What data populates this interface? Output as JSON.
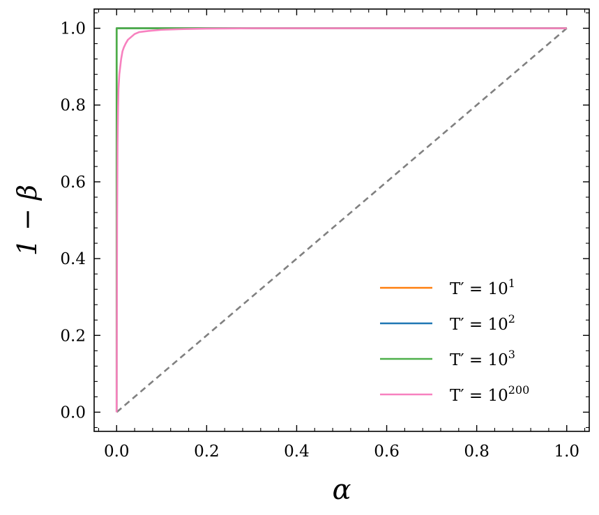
{
  "chart_data": {
    "type": "line",
    "xlabel": "α",
    "ylabel": "1 − β",
    "xlim": [
      -0.05,
      1.05
    ],
    "ylim": [
      -0.05,
      1.05
    ],
    "x_ticks": [
      "0.0",
      "0.2",
      "0.4",
      "0.6",
      "0.8",
      "1.0"
    ],
    "y_ticks": [
      "0.0",
      "0.2",
      "0.4",
      "0.6",
      "0.8",
      "1.0"
    ],
    "grid": false,
    "legend_position": "bottom-right",
    "reference_line": {
      "x": [
        0,
        1
      ],
      "y": [
        0,
        1
      ],
      "color": "#808080",
      "style": "dashed"
    },
    "series": [
      {
        "name": "T′ = 10",
        "exp": "1",
        "color": "#ff7f0e",
        "x": [
          0,
          0,
          0.002,
          0.004,
          1.0
        ],
        "y": [
          0,
          1.0,
          1.0,
          1.0,
          1.0
        ]
      },
      {
        "name": "T′ = 10",
        "exp": "2",
        "color": "#1f77b4",
        "x": [
          0,
          0,
          0.002,
          0.004,
          1.0
        ],
        "y": [
          0,
          1.0,
          1.0,
          1.0,
          1.0
        ]
      },
      {
        "name": "T′ = 10",
        "exp": "3",
        "color": "#4daf4a",
        "x": [
          0,
          0,
          0.002,
          0.004,
          0.05,
          0.2,
          1.0
        ],
        "y": [
          0,
          1.0,
          1.0,
          1.0,
          1.0,
          1.0,
          1.0
        ]
      },
      {
        "name": "T′ = 10",
        "exp": "200",
        "color": "#f781bf",
        "x": [
          0,
          0.001,
          0.002,
          0.003,
          0.004,
          0.006,
          0.008,
          0.01,
          0.013,
          0.016,
          0.02,
          0.025,
          0.03,
          0.04,
          0.05,
          0.07,
          0.1,
          0.15,
          0.2,
          0.3,
          1.0
        ],
        "y": [
          0,
          0.5,
          0.7,
          0.78,
          0.84,
          0.88,
          0.9,
          0.92,
          0.94,
          0.95,
          0.96,
          0.97,
          0.975,
          0.985,
          0.99,
          0.993,
          0.996,
          0.998,
          0.999,
          1.0,
          1.0
        ]
      }
    ]
  }
}
